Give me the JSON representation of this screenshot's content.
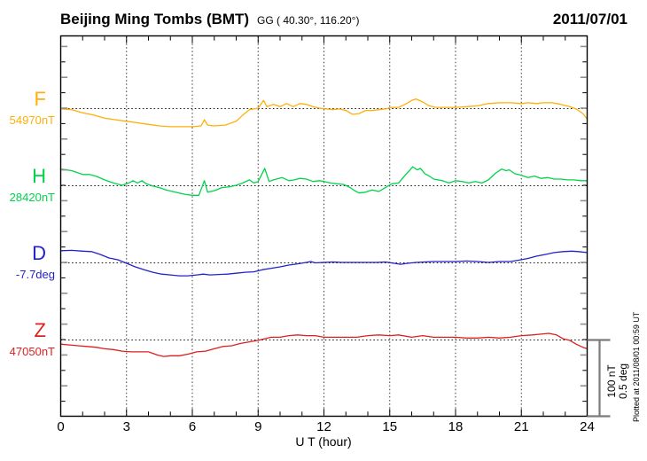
{
  "header": {
    "station_title": "Beijing Ming Tombs (BMT)",
    "geographic_coords": "GG ( 40.30°, 116.20°)",
    "date": "2011/07/01"
  },
  "x_axis": {
    "label": "U T (hour)",
    "tick_labels": [
      "0",
      "3",
      "6",
      "9",
      "12",
      "15",
      "18",
      "21",
      "24"
    ],
    "min": 0,
    "max": 24,
    "major_step_hours": 3,
    "minor_step_hours": 1
  },
  "scale_bar": {
    "nt_label": "100 nT",
    "deg_label": "0.5 deg",
    "nt_span": 100,
    "deg_span": 0.5,
    "color": "#7a7a7a"
  },
  "plot_note": "Plotted at 2011/08/01 00:59 UT",
  "chart_data": {
    "type": "line",
    "title": "Beijing Ming Tombs (BMT) magnetogram, 2011/07/01",
    "xlabel": "U T (hour)",
    "x_range": [
      0,
      24
    ],
    "grid": "dotted vertical lines every 3 h; dotted horizontal baseline per channel",
    "legend_position": "channel letter + baseline value at left of each trace",
    "series": [
      {
        "name": "F",
        "label": "F",
        "unit": "nT",
        "baseline_value": 54970,
        "baseline_label": "54970nT",
        "color": "#FFAF0A",
        "points": [
          [
            0,
            54969
          ],
          [
            0.5,
            54968
          ],
          [
            1,
            54964
          ],
          [
            1.5,
            54961
          ],
          [
            2,
            54957
          ],
          [
            2.5,
            54955
          ],
          [
            3,
            54953
          ],
          [
            3.5,
            54951
          ],
          [
            4,
            54949
          ],
          [
            4.5,
            54947
          ],
          [
            5,
            54946
          ],
          [
            5.5,
            54946
          ],
          [
            6,
            54946
          ],
          [
            6.4,
            54947
          ],
          [
            6.55,
            54955
          ],
          [
            6.7,
            54948
          ],
          [
            7,
            54947
          ],
          [
            7.5,
            54948
          ],
          [
            8,
            54953
          ],
          [
            8.3,
            54961
          ],
          [
            8.6,
            54968
          ],
          [
            9,
            54970
          ],
          [
            9.25,
            54980
          ],
          [
            9.4,
            54972
          ],
          [
            9.7,
            54975
          ],
          [
            10,
            54972
          ],
          [
            10.3,
            54976
          ],
          [
            10.6,
            54972
          ],
          [
            10.9,
            54976
          ],
          [
            11.2,
            54975
          ],
          [
            11.5,
            54972
          ],
          [
            11.8,
            54970
          ],
          [
            12.1,
            54969
          ],
          [
            12.4,
            54968
          ],
          [
            12.7,
            54969
          ],
          [
            13,
            54967
          ],
          [
            13.3,
            54962
          ],
          [
            13.6,
            54963
          ],
          [
            13.9,
            54967
          ],
          [
            14.2,
            54967
          ],
          [
            14.5,
            54968
          ],
          [
            14.8,
            54969
          ],
          [
            15.1,
            54971
          ],
          [
            15.4,
            54971
          ],
          [
            15.7,
            54975
          ],
          [
            16,
            54980
          ],
          [
            16.2,
            54982
          ],
          [
            16.5,
            54978
          ],
          [
            16.8,
            54973
          ],
          [
            17.1,
            54971
          ],
          [
            17.5,
            54971
          ],
          [
            18,
            54971
          ],
          [
            18.5,
            54972
          ],
          [
            19,
            54973
          ],
          [
            19.5,
            54976
          ],
          [
            20,
            54977
          ],
          [
            20.5,
            54977
          ],
          [
            21,
            54976
          ],
          [
            21.3,
            54977
          ],
          [
            21.7,
            54976
          ],
          [
            22,
            54977
          ],
          [
            22.4,
            54977
          ],
          [
            22.8,
            54975
          ],
          [
            23.2,
            54972
          ],
          [
            23.5,
            54969
          ],
          [
            23.8,
            54963
          ],
          [
            24,
            54956
          ]
        ]
      },
      {
        "name": "H",
        "label": "H",
        "unit": "nT",
        "baseline_value": 28420,
        "baseline_label": "28420nT",
        "color": "#00D44A",
        "points": [
          [
            0,
            28441
          ],
          [
            0.5,
            28439
          ],
          [
            1,
            28434
          ],
          [
            1.3,
            28434
          ],
          [
            1.6,
            28432
          ],
          [
            2,
            28427
          ],
          [
            2.4,
            28423
          ],
          [
            2.8,
            28420
          ],
          [
            3.1,
            28423
          ],
          [
            3.3,
            28426
          ],
          [
            3.5,
            28423
          ],
          [
            3.7,
            28426
          ],
          [
            3.9,
            28422
          ],
          [
            4.2,
            28419
          ],
          [
            4.5,
            28417
          ],
          [
            4.8,
            28414
          ],
          [
            5.1,
            28412
          ],
          [
            5.4,
            28410
          ],
          [
            5.7,
            28408
          ],
          [
            6,
            28407
          ],
          [
            6.3,
            28407
          ],
          [
            6.55,
            28426
          ],
          [
            6.7,
            28411
          ],
          [
            7,
            28413
          ],
          [
            7.35,
            28417
          ],
          [
            7.7,
            28418
          ],
          [
            8,
            28420
          ],
          [
            8.3,
            28423
          ],
          [
            8.6,
            28427
          ],
          [
            8.8,
            28423
          ],
          [
            9,
            28425
          ],
          [
            9.3,
            28442
          ],
          [
            9.5,
            28425
          ],
          [
            9.7,
            28427
          ],
          [
            10.1,
            28430
          ],
          [
            10.4,
            28426
          ],
          [
            10.65,
            28427
          ],
          [
            10.9,
            28429
          ],
          [
            11.2,
            28428
          ],
          [
            11.5,
            28425
          ],
          [
            11.8,
            28426
          ],
          [
            12,
            28425
          ],
          [
            12.3,
            28423
          ],
          [
            12.6,
            28422
          ],
          [
            12.9,
            28421
          ],
          [
            13.2,
            28417
          ],
          [
            13.4,
            28413
          ],
          [
            13.6,
            28410
          ],
          [
            13.9,
            28411
          ],
          [
            14.2,
            28414
          ],
          [
            14.5,
            28412
          ],
          [
            14.8,
            28417
          ],
          [
            15.1,
            28422
          ],
          [
            15.4,
            28423
          ],
          [
            15.7,
            28433
          ],
          [
            15.9,
            28439
          ],
          [
            16.05,
            28444
          ],
          [
            16.25,
            28440
          ],
          [
            16.4,
            28442
          ],
          [
            16.6,
            28435
          ],
          [
            16.8,
            28432
          ],
          [
            17,
            28428
          ],
          [
            17.4,
            28426
          ],
          [
            17.7,
            28423
          ],
          [
            18,
            28426
          ],
          [
            18.3,
            28425
          ],
          [
            18.6,
            28423
          ],
          [
            18.9,
            28425
          ],
          [
            19.2,
            28423
          ],
          [
            19.5,
            28427
          ],
          [
            19.8,
            28435
          ],
          [
            20.1,
            28441
          ],
          [
            20.3,
            28439
          ],
          [
            20.45,
            28440
          ],
          [
            20.7,
            28435
          ],
          [
            21,
            28433
          ],
          [
            21.3,
            28430
          ],
          [
            21.6,
            28432
          ],
          [
            21.9,
            28429
          ],
          [
            22.2,
            28430
          ],
          [
            22.5,
            28428
          ],
          [
            22.8,
            28428
          ],
          [
            23.1,
            28427
          ],
          [
            23.4,
            28427
          ],
          [
            23.7,
            28426
          ],
          [
            24,
            28426
          ]
        ]
      },
      {
        "name": "D",
        "label": "D",
        "unit": "deg",
        "baseline_value": -7.7,
        "baseline_label": "-7.7deg",
        "color": "#2222CC",
        "points": [
          [
            0,
            -7.624
          ],
          [
            0.5,
            -7.622
          ],
          [
            1,
            -7.627
          ],
          [
            1.4,
            -7.63
          ],
          [
            1.8,
            -7.648
          ],
          [
            2.2,
            -7.671
          ],
          [
            2.6,
            -7.683
          ],
          [
            2.8,
            -7.694
          ],
          [
            3,
            -7.706
          ],
          [
            3.4,
            -7.729
          ],
          [
            3.8,
            -7.747
          ],
          [
            4.2,
            -7.764
          ],
          [
            4.6,
            -7.776
          ],
          [
            5,
            -7.781
          ],
          [
            5.4,
            -7.787
          ],
          [
            5.8,
            -7.787
          ],
          [
            6.2,
            -7.781
          ],
          [
            6.5,
            -7.776
          ],
          [
            6.8,
            -7.781
          ],
          [
            7.2,
            -7.778
          ],
          [
            7.6,
            -7.776
          ],
          [
            8,
            -7.77
          ],
          [
            8.4,
            -7.764
          ],
          [
            8.8,
            -7.761
          ],
          [
            9.2,
            -7.747
          ],
          [
            9.6,
            -7.738
          ],
          [
            10,
            -7.729
          ],
          [
            10.4,
            -7.717
          ],
          [
            10.8,
            -7.709
          ],
          [
            11.2,
            -7.7
          ],
          [
            11.4,
            -7.694
          ],
          [
            11.6,
            -7.703
          ],
          [
            12,
            -7.7
          ],
          [
            12.4,
            -7.697
          ],
          [
            12.8,
            -7.7
          ],
          [
            13.2,
            -7.7
          ],
          [
            13.6,
            -7.7
          ],
          [
            14,
            -7.7
          ],
          [
            14.4,
            -7.7
          ],
          [
            14.8,
            -7.697
          ],
          [
            15.2,
            -7.706
          ],
          [
            15.5,
            -7.712
          ],
          [
            15.8,
            -7.706
          ],
          [
            16.2,
            -7.7
          ],
          [
            16.6,
            -7.697
          ],
          [
            17,
            -7.694
          ],
          [
            17.5,
            -7.694
          ],
          [
            18,
            -7.694
          ],
          [
            18.5,
            -7.691
          ],
          [
            19,
            -7.694
          ],
          [
            19.5,
            -7.7
          ],
          [
            20,
            -7.694
          ],
          [
            20.5,
            -7.694
          ],
          [
            20.9,
            -7.685
          ],
          [
            21.3,
            -7.674
          ],
          [
            21.7,
            -7.659
          ],
          [
            22.1,
            -7.648
          ],
          [
            22.5,
            -7.636
          ],
          [
            22.9,
            -7.63
          ],
          [
            23.3,
            -7.627
          ],
          [
            23.6,
            -7.63
          ],
          [
            24,
            -7.636
          ]
        ]
      },
      {
        "name": "Z",
        "label": "Z",
        "unit": "nT",
        "baseline_value": 47050,
        "baseline_label": "47050nT",
        "color": "#DD1F1F",
        "points": [
          [
            0,
            47044
          ],
          [
            0.4,
            47043
          ],
          [
            0.8,
            47042
          ],
          [
            1.2,
            47041
          ],
          [
            1.6,
            47040
          ],
          [
            2,
            47038
          ],
          [
            2.4,
            47037
          ],
          [
            2.8,
            47035
          ],
          [
            3.2,
            47034
          ],
          [
            3.6,
            47034
          ],
          [
            4,
            47034
          ],
          [
            4.4,
            47030
          ],
          [
            4.7,
            47028
          ],
          [
            5,
            47029
          ],
          [
            5.4,
            47029
          ],
          [
            5.8,
            47031
          ],
          [
            6.2,
            47034
          ],
          [
            6.6,
            47035
          ],
          [
            7,
            47038
          ],
          [
            7.4,
            47041
          ],
          [
            7.8,
            47042
          ],
          [
            8.2,
            47045
          ],
          [
            8.6,
            47047
          ],
          [
            9,
            47049
          ],
          [
            9.3,
            47051
          ],
          [
            9.6,
            47053
          ],
          [
            10,
            47053
          ],
          [
            10.4,
            47055
          ],
          [
            10.8,
            47056
          ],
          [
            11.2,
            47055
          ],
          [
            11.6,
            47055
          ],
          [
            12,
            47053
          ],
          [
            12.5,
            47053
          ],
          [
            13,
            47053
          ],
          [
            13.5,
            47053
          ],
          [
            14,
            47055
          ],
          [
            14.5,
            47056
          ],
          [
            15,
            47055
          ],
          [
            15.4,
            47056
          ],
          [
            16,
            47053
          ],
          [
            16.5,
            47055
          ],
          [
            17,
            47053
          ],
          [
            17.5,
            47053
          ],
          [
            18,
            47053
          ],
          [
            18.5,
            47052
          ],
          [
            19,
            47052
          ],
          [
            19.5,
            47053
          ],
          [
            20,
            47052
          ],
          [
            20.5,
            47053
          ],
          [
            21,
            47055
          ],
          [
            21.5,
            47056
          ],
          [
            21.9,
            47057
          ],
          [
            22.25,
            47058
          ],
          [
            22.6,
            47056
          ],
          [
            22.9,
            47051
          ],
          [
            23.2,
            47049
          ],
          [
            23.5,
            47044
          ],
          [
            23.8,
            47040
          ],
          [
            24,
            47038
          ]
        ]
      }
    ]
  }
}
